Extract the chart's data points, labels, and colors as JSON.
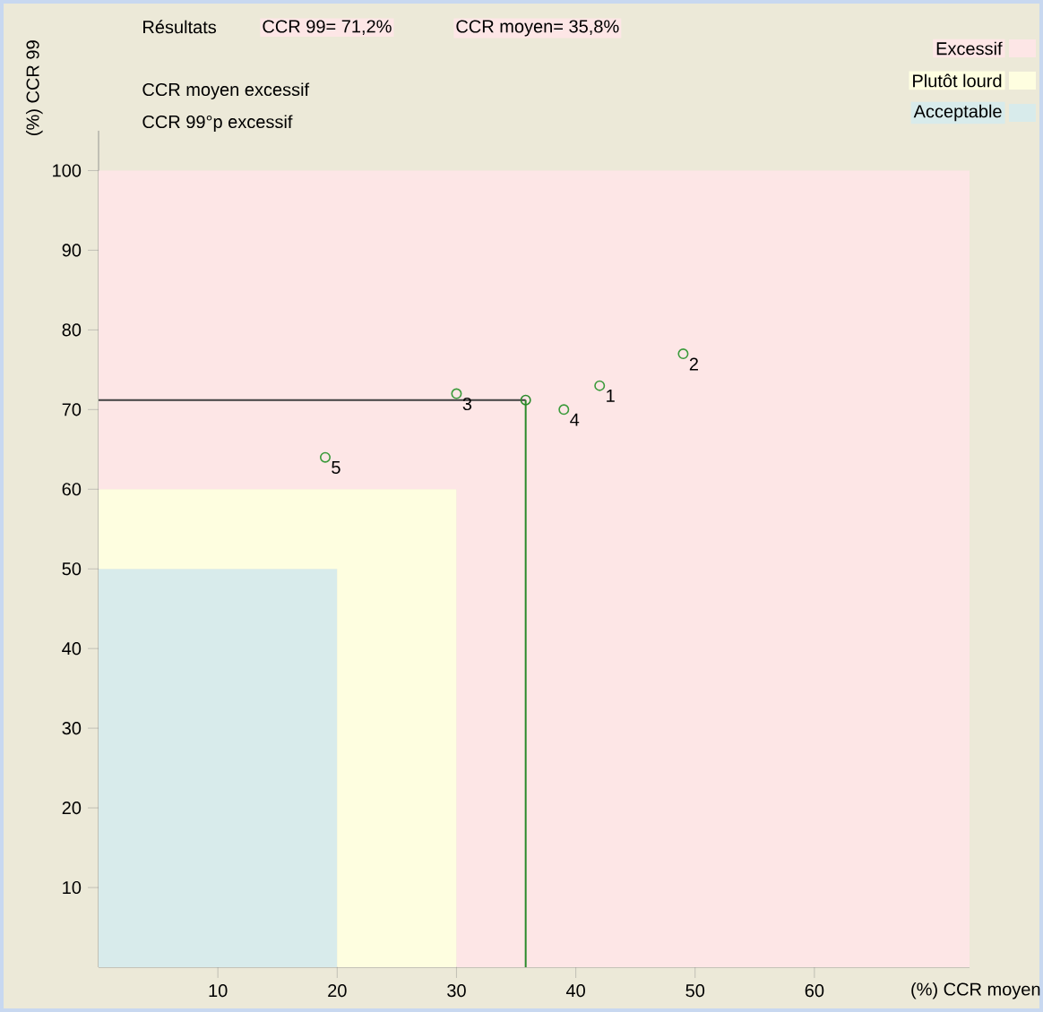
{
  "chart_data": {
    "type": "scatter",
    "xlabel": "(%) CCR moyen",
    "ylabel": "(%) CCR 99",
    "xlim": [
      0,
      73
    ],
    "ylim": [
      0,
      105
    ],
    "xticks": [
      10,
      20,
      30,
      40,
      50,
      60
    ],
    "yticks": [
      10,
      20,
      30,
      40,
      50,
      60,
      70,
      80,
      90,
      100
    ],
    "stacked": true,
    "series": [
      {
        "type": "area",
        "name": "Acceptable",
        "color": "#d8ebeb",
        "x": [
          0,
          20,
          20,
          30,
          30,
          73
        ],
        "values": [
          50,
          50,
          0,
          0,
          0,
          0
        ]
      },
      {
        "type": "area",
        "name": "Plutôt lourd",
        "color": "#fefee0",
        "x": [
          0,
          20,
          20,
          30,
          30,
          73
        ],
        "values": [
          10,
          10,
          60,
          60,
          0,
          0
        ]
      },
      {
        "type": "area",
        "name": "Excessif",
        "color": "#fde6e6",
        "x": [
          0,
          20,
          20,
          30,
          30,
          73
        ],
        "values": [
          40,
          40,
          40,
          40,
          100,
          100
        ]
      },
      {
        "color": "#3a9a3a",
        "marker": "circle",
        "x": [
          42,
          49,
          30,
          39,
          19
        ],
        "values": [
          73,
          77,
          72,
          70,
          64
        ]
      },
      {
        "color": "#2a8a2a",
        "marker": "circle",
        "x": [
          35.8
        ],
        "values": [
          71.2
        ]
      }
    ],
    "ref_lines": [
      {
        "axis": "y",
        "value": 71.2,
        "color": "#404040"
      },
      {
        "axis": "x",
        "value": 35.8,
        "color": "#2a8a2a"
      }
    ],
    "annotations": [
      "Résultats",
      "CCR 99= 71,2%",
      "CCR moyen= 35,8%",
      "CCR moyen excessif",
      "CCR 99°p excessif",
      {
        "text": "1",
        "x": 42,
        "y": 73
      },
      {
        "text": "2",
        "x": 49,
        "y": 77
      },
      {
        "text": "3",
        "x": 30,
        "y": 72
      },
      {
        "text": "4",
        "x": 39,
        "y": 70
      },
      {
        "text": "5",
        "x": 19,
        "y": 64
      }
    ],
    "legend": "top right",
    "grid": false
  }
}
